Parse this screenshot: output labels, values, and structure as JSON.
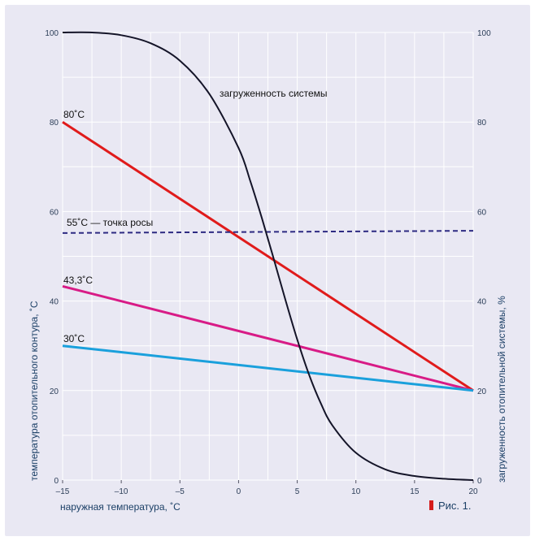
{
  "chart_data": {
    "type": "line",
    "xlabel": "наружная температура, ˚С",
    "ylabel_left": "температура отопительного контура, ˚С",
    "ylabel_right": "загруженность отопительной системы, %",
    "x_ticks": [
      -15,
      -10,
      -5,
      0,
      5,
      10,
      15,
      20
    ],
    "x_tick_labels": [
      "–15",
      "–10",
      "–5",
      "0",
      "5",
      "10",
      "15",
      "20"
    ],
    "xlim": [
      -15,
      20
    ],
    "y_ticks": [
      0,
      20,
      40,
      60,
      80,
      100
    ],
    "ylim_left": [
      0,
      100
    ],
    "ylim_right": [
      0,
      100
    ],
    "grid": true,
    "figure_label": "Рис. 1.",
    "figure_marker_color": "#d41c1c",
    "series": [
      {
        "key": "t80",
        "name": "80˚С",
        "color": "#e01b1b",
        "dashed": false,
        "x": [
          -15,
          20
        ],
        "y": [
          80,
          20
        ]
      },
      {
        "key": "dew",
        "name": "55˚С — точка росы",
        "color": "#2d2a82",
        "dashed": true,
        "x": [
          -15,
          20
        ],
        "y": [
          55.2,
          55.7
        ]
      },
      {
        "key": "t43",
        "name": "43,3˚С",
        "color": "#d81b86",
        "dashed": false,
        "x": [
          -15,
          20
        ],
        "y": [
          43.3,
          20
        ]
      },
      {
        "key": "t30",
        "name": "30˚С",
        "color": "#1aa0dc",
        "dashed": false,
        "x": [
          -15,
          20
        ],
        "y": [
          30,
          20
        ]
      },
      {
        "key": "load",
        "name": "загруженность системы",
        "color": "#141428",
        "dashed": false,
        "x": [
          -15,
          -12.5,
          -10,
          -7.5,
          -5,
          -2.5,
          0,
          1,
          2,
          3,
          4,
          5,
          6,
          7,
          8,
          10,
          12.5,
          15,
          17.5,
          20
        ],
        "y": [
          100,
          100,
          99.4,
          97.6,
          93.7,
          86.3,
          74.2,
          66.8,
          58.4,
          49.4,
          40.2,
          31.4,
          23.6,
          17.2,
          12.2,
          6.1,
          2.4,
          0.9,
          0.3,
          0
        ]
      }
    ]
  }
}
